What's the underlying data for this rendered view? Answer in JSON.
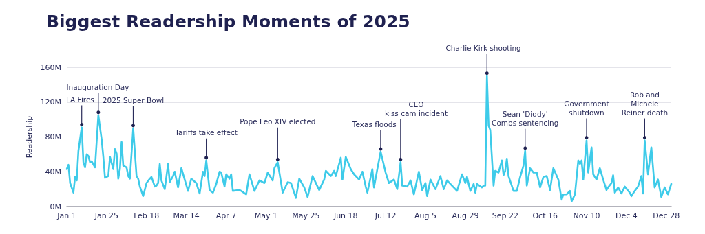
{
  "chart_data": {
    "type": "line",
    "title": "Biggest Readership Moments of 2025",
    "ylabel": "Readership",
    "x": [
      "2025-01-01",
      "2025-01-02",
      "2025-01-03",
      "2025-01-05",
      "2025-01-06",
      "2025-01-07",
      "2025-01-08",
      "2025-01-10",
      "2025-01-11",
      "2025-01-12",
      "2025-01-13",
      "2025-01-14",
      "2025-01-15",
      "2025-01-16",
      "2025-01-18",
      "2025-01-20",
      "2025-01-22",
      "2025-01-23",
      "2025-01-24",
      "2025-01-26",
      "2025-01-27",
      "2025-01-29",
      "2025-01-30",
      "2025-01-31",
      "2025-02-01",
      "2025-02-02",
      "2025-02-03",
      "2025-02-04",
      "2025-02-06",
      "2025-02-07",
      "2025-02-08",
      "2025-02-10",
      "2025-02-12",
      "2025-02-13",
      "2025-02-14",
      "2025-02-16",
      "2025-02-18",
      "2025-02-20",
      "2025-02-21",
      "2025-02-23",
      "2025-02-24",
      "2025-02-25",
      "2025-02-26",
      "2025-02-27",
      "2025-03-01",
      "2025-03-03",
      "2025-03-04",
      "2025-03-06",
      "2025-03-07",
      "2025-03-09",
      "2025-03-11",
      "2025-03-13",
      "2025-03-15",
      "2025-03-17",
      "2025-03-20",
      "2025-03-22",
      "2025-03-24",
      "2025-03-25",
      "2025-03-26",
      "2025-03-28",
      "2025-03-30",
      "2025-04-01",
      "2025-04-03",
      "2025-04-04",
      "2025-04-06",
      "2025-04-07",
      "2025-04-09",
      "2025-04-10",
      "2025-04-11",
      "2025-04-15",
      "2025-04-16",
      "2025-04-19",
      "2025-04-21",
      "2025-04-24",
      "2025-04-27",
      "2025-04-30",
      "2025-05-02",
      "2025-05-05",
      "2025-05-06",
      "2025-05-08",
      "2025-05-11",
      "2025-05-14",
      "2025-05-16",
      "2025-05-19",
      "2025-05-21",
      "2025-05-24",
      "2025-05-26",
      "2025-05-29",
      "2025-06-02",
      "2025-06-05",
      "2025-06-06",
      "2025-06-09",
      "2025-06-11",
      "2025-06-12",
      "2025-06-15",
      "2025-06-16",
      "2025-06-18",
      "2025-06-21",
      "2025-06-23",
      "2025-06-26",
      "2025-06-28",
      "2025-06-30",
      "2025-07-01",
      "2025-07-04",
      "2025-07-05",
      "2025-07-07",
      "2025-07-09",
      "2025-07-12",
      "2025-07-14",
      "2025-07-17",
      "2025-07-19",
      "2025-07-21",
      "2025-07-22",
      "2025-07-25",
      "2025-07-27",
      "2025-07-29",
      "2025-08-01",
      "2025-08-03",
      "2025-08-05",
      "2025-08-06",
      "2025-08-08",
      "2025-08-11",
      "2025-08-14",
      "2025-08-16",
      "2025-08-18",
      "2025-08-21",
      "2025-08-24",
      "2025-08-27",
      "2025-08-29",
      "2025-08-30",
      "2025-09-01",
      "2025-09-03",
      "2025-09-04",
      "2025-09-05",
      "2025-09-08",
      "2025-09-09",
      "2025-09-10",
      "2025-09-11",
      "2025-09-12",
      "2025-09-13",
      "2025-09-15",
      "2025-09-16",
      "2025-09-18",
      "2025-09-20",
      "2025-09-21",
      "2025-09-22",
      "2025-09-23",
      "2025-09-24",
      "2025-09-27",
      "2025-09-29",
      "2025-10-01",
      "2025-10-03",
      "2025-10-04",
      "2025-10-05",
      "2025-10-07",
      "2025-10-09",
      "2025-10-11",
      "2025-10-13",
      "2025-10-15",
      "2025-10-17",
      "2025-10-18",
      "2025-10-19",
      "2025-10-21",
      "2025-10-24",
      "2025-10-26",
      "2025-10-27",
      "2025-10-29",
      "2025-10-31",
      "2025-11-01",
      "2025-11-03",
      "2025-11-05",
      "2025-11-06",
      "2025-11-07",
      "2025-11-08",
      "2025-11-10",
      "2025-11-11",
      "2025-11-13",
      "2025-11-14",
      "2025-11-16",
      "2025-11-18",
      "2025-11-20",
      "2025-11-22",
      "2025-11-23",
      "2025-11-25",
      "2025-11-26",
      "2025-11-27",
      "2025-11-29",
      "2025-12-01",
      "2025-12-03",
      "2025-12-06",
      "2025-12-07",
      "2025-12-09",
      "2025-12-11",
      "2025-12-13",
      "2025-12-14",
      "2025-12-15",
      "2025-12-17",
      "2025-12-19",
      "2025-12-21",
      "2025-12-23",
      "2025-12-25",
      "2025-12-27",
      "2025-12-29",
      "2025-12-31"
    ],
    "values": [
      43,
      48,
      27,
      16,
      34,
      30,
      64,
      91,
      51,
      45,
      60,
      58,
      51,
      52,
      45,
      105,
      77,
      57,
      33,
      35,
      57,
      43,
      66,
      61,
      32,
      43,
      74,
      47,
      45,
      35,
      32,
      90,
      35,
      32,
      23,
      12,
      27,
      32,
      34,
      23,
      24,
      27,
      49,
      30,
      20,
      49,
      28,
      35,
      40,
      22,
      44,
      31,
      18,
      32,
      27,
      15,
      40,
      35,
      53,
      19,
      16,
      26,
      40,
      39,
      23,
      37,
      32,
      37,
      18,
      19,
      18,
      14,
      37,
      18,
      30,
      27,
      39,
      30,
      44,
      51,
      16,
      28,
      27,
      10,
      32,
      22,
      11,
      35,
      19,
      31,
      41,
      35,
      41,
      35,
      56,
      31,
      57,
      43,
      37,
      31,
      40,
      23,
      16,
      43,
      22,
      43,
      63,
      39,
      27,
      31,
      20,
      51,
      24,
      23,
      30,
      14,
      40,
      19,
      27,
      12,
      31,
      20,
      35,
      20,
      30,
      24,
      18,
      37,
      27,
      34,
      18,
      26,
      16,
      26,
      22,
      24,
      24,
      150,
      93,
      88,
      24,
      41,
      39,
      53,
      36,
      41,
      55,
      35,
      18,
      18,
      34,
      47,
      64,
      24,
      44,
      39,
      39,
      22,
      34,
      35,
      27,
      19,
      44,
      31,
      8,
      14,
      14,
      18,
      6,
      14,
      53,
      49,
      53,
      31,
      76,
      39,
      68,
      37,
      31,
      44,
      31,
      19,
      22,
      27,
      36,
      16,
      22,
      15,
      23,
      16,
      12,
      18,
      23,
      35,
      15,
      76,
      37,
      68,
      22,
      31,
      11,
      22,
      14,
      26
    ],
    "color": "#3ecbe9",
    "xlim": [
      "2025-01-01",
      "2025-12-31"
    ],
    "xticks": [
      {
        "value": "2025-01-01",
        "label": "Jan 1"
      },
      {
        "value": "2025-01-25",
        "label": "Jan 25"
      },
      {
        "value": "2025-02-18",
        "label": "Feb 18"
      },
      {
        "value": "2025-03-14",
        "label": "Mar 14"
      },
      {
        "value": "2025-04-07",
        "label": "Apr 7"
      },
      {
        "value": "2025-05-01",
        "label": "May 1"
      },
      {
        "value": "2025-05-25",
        "label": "May 25"
      },
      {
        "value": "2025-06-18",
        "label": "Jun 18"
      },
      {
        "value": "2025-07-12",
        "label": "Jul 12"
      },
      {
        "value": "2025-08-05",
        "label": "Aug 5"
      },
      {
        "value": "2025-08-29",
        "label": "Aug 29"
      },
      {
        "value": "2025-09-22",
        "label": "Sep 22"
      },
      {
        "value": "2025-10-16",
        "label": "Oct 16"
      },
      {
        "value": "2025-11-10",
        "label": "Nov 10"
      },
      {
        "value": "2025-12-04",
        "label": "Dec 4"
      },
      {
        "value": "2025-12-28",
        "label": "Dec 28"
      }
    ],
    "ylim": [
      0,
      160
    ],
    "yticks": [
      {
        "value": 0,
        "label": "0M"
      },
      {
        "value": 40,
        "label": "40M"
      },
      {
        "value": 80,
        "label": "80M"
      },
      {
        "value": 120,
        "label": "120M"
      },
      {
        "value": 160,
        "label": "160M"
      }
    ],
    "grid": "y",
    "annotations": [
      {
        "text": "LA Fires",
        "x": "2025-01-10",
        "y": 91
      },
      {
        "text": "Inauguration Day",
        "x": "2025-01-20",
        "y": 105
      },
      {
        "text": "2025 Super Bowl",
        "x": "2025-02-10",
        "y": 90
      },
      {
        "text": "Tariffs take effect",
        "x": "2025-03-26",
        "y": 53
      },
      {
        "text": "Pope Leo XIV elected",
        "x": "2025-05-08",
        "y": 51
      },
      {
        "text": "Texas floods",
        "x": "2025-07-09",
        "y": 63
      },
      {
        "text": "CEO\nkiss cam incident",
        "x": "2025-07-21",
        "y": 51
      },
      {
        "text": "Charlie Kirk shooting",
        "x": "2025-09-11",
        "y": 150
      },
      {
        "text": "Sean 'Diddy'\nCombs sentencing",
        "x": "2025-10-04",
        "y": 64
      },
      {
        "text": "Government\nshutdown",
        "x": "2025-11-10",
        "y": 76
      },
      {
        "text": "Rob and\nMichele\nReiner death",
        "x": "2025-12-15",
        "y": 76
      }
    ]
  }
}
